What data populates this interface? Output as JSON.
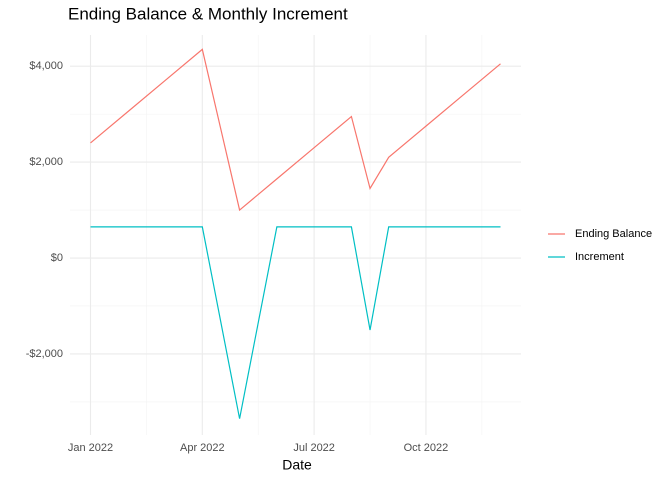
{
  "chart_data": {
    "type": "line",
    "title": "Ending Balance & Monthly Increment",
    "x_label": "Date",
    "x": [
      0,
      1,
      2,
      3,
      4,
      5,
      6,
      7,
      7.5,
      8,
      9,
      10,
      11
    ],
    "series": [
      {
        "name": "Ending Balance",
        "color": "#F8766D",
        "values": [
          2400,
          3050,
          3700,
          4350,
          1000,
          1650,
          2300,
          2950,
          1450,
          2100,
          2750,
          3400,
          4050
        ]
      },
      {
        "name": "Increment",
        "color": "#00BFC4",
        "values": [
          650,
          650,
          650,
          650,
          -3350,
          650,
          650,
          650,
          -1500,
          650,
          650,
          650,
          650
        ]
      }
    ],
    "xlim": [
      -0.55,
      11.55
    ],
    "xticks": [
      {
        "value": 0,
        "label": "Jan 2022"
      },
      {
        "value": 3,
        "label": "Apr 2022"
      },
      {
        "value": 6,
        "label": "Jul 2022"
      },
      {
        "value": 9,
        "label": "Oct 2022"
      }
    ],
    "xminorticks": [
      1.5,
      4.5,
      7.5,
      10.5
    ],
    "ylim": [
      -3690,
      4650
    ],
    "yticks": [
      {
        "value": -2000,
        "label": "-$2,000"
      },
      {
        "value": 0,
        "label": "$0"
      },
      {
        "value": 2000,
        "label": "$2,000"
      },
      {
        "value": 4000,
        "label": "$4,000"
      }
    ],
    "yminorticks": [
      -3000,
      -1000,
      1000,
      3000
    ],
    "grid": true,
    "legend": "right"
  }
}
